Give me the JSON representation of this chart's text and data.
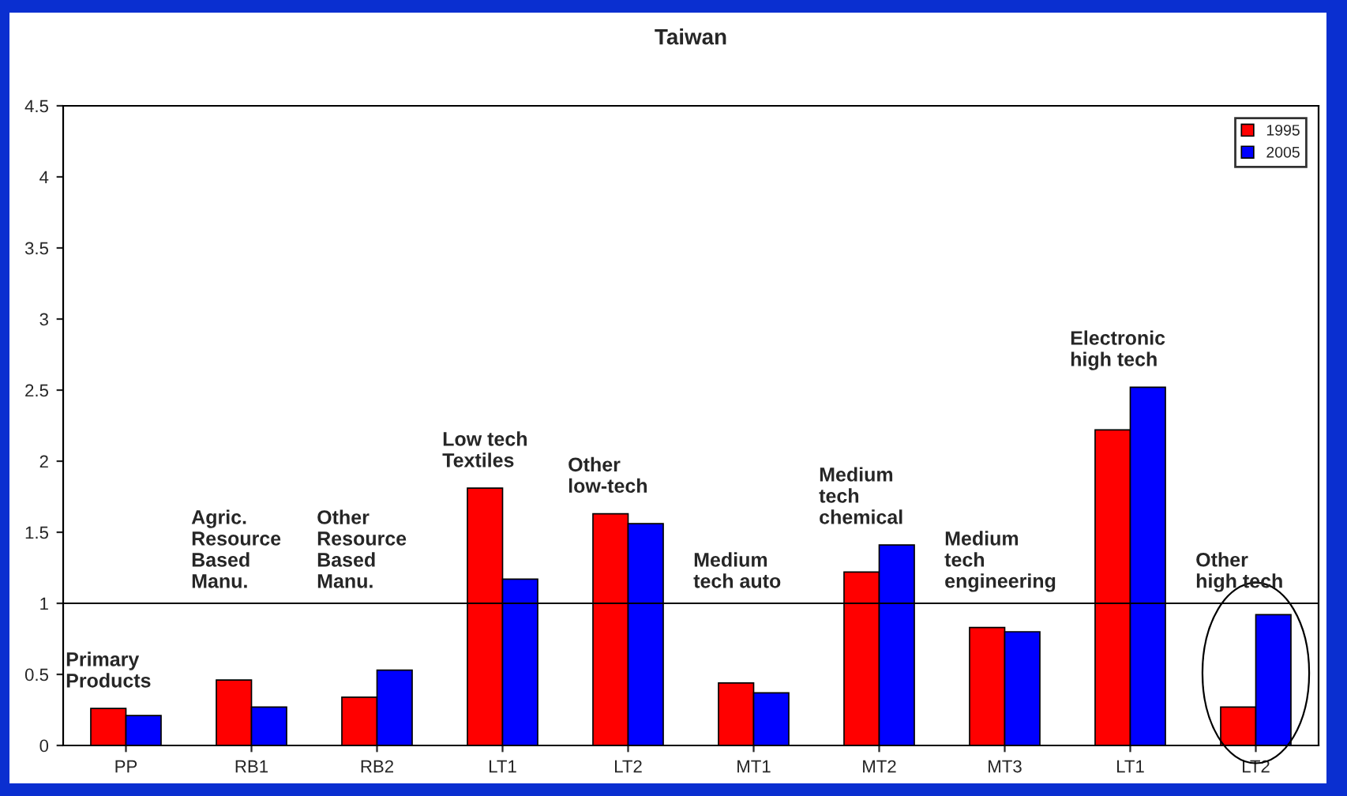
{
  "chart_data": {
    "type": "bar",
    "title": "Taiwan",
    "categories": [
      "PP",
      "RB1",
      "RB2",
      "LT1",
      "LT2",
      "MT1",
      "MT2",
      "MT3",
      "LT1",
      "LT2"
    ],
    "series": [
      {
        "name": "1995",
        "color": "#ff0000",
        "values": [
          0.26,
          0.46,
          0.34,
          1.81,
          1.63,
          0.44,
          1.22,
          0.83,
          2.22,
          0.27
        ]
      },
      {
        "name": "2005",
        "color": "#0000ff",
        "values": [
          0.21,
          0.27,
          0.53,
          1.17,
          1.56,
          0.37,
          1.41,
          0.8,
          2.52,
          0.92
        ]
      }
    ],
    "ylim": [
      0,
      4.5
    ],
    "yticks": [
      0,
      0.5,
      1,
      1.5,
      2,
      2.5,
      3,
      3.5,
      4,
      4.5
    ],
    "ref_lines": [
      {
        "axis": "y",
        "value": 1,
        "color": "#000000"
      }
    ],
    "annotations": [
      "Primary\nProducts",
      "Agric.\nResource\nBased\nManu.",
      "Other\nResource\nBased\nManu.",
      "Low tech\nTextiles",
      "Other\nlow-tech",
      "Medium\ntech auto",
      "Medium\ntech\nchemical",
      "Medium\ntech\nengineering",
      "Electronic\nhigh tech",
      "Other\nhigh tech"
    ],
    "legend": "top right",
    "grid": false
  }
}
